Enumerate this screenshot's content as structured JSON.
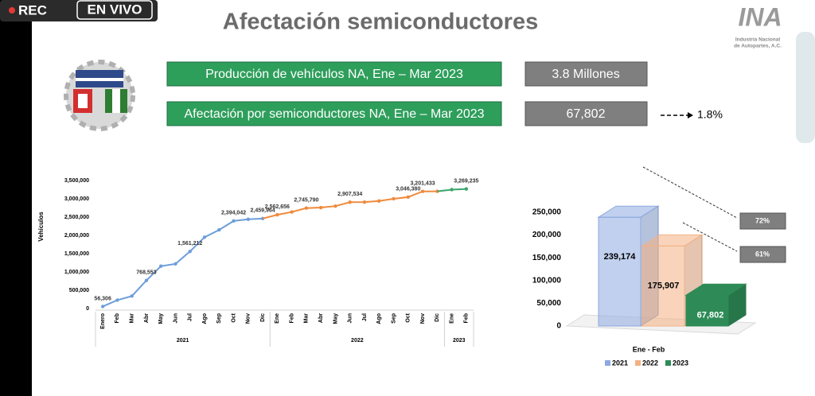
{
  "overlay": {
    "rec": "REC",
    "live": "EN VIVO"
  },
  "slide": {
    "title": "Afectación semiconductores",
    "logo": {
      "mark": "INA",
      "text": [
        "Industria Nacional",
        "de Autopartes, A.C."
      ]
    },
    "rows": [
      {
        "label": "Producción de vehículos NA, Ene – Mar 2023",
        "value": "3.8 Millones"
      },
      {
        "label": "Afectación por semiconductores NA, Ene – Mar 2023",
        "value": "67,802",
        "note": "1.8%"
      }
    ]
  },
  "chart_data": [
    {
      "type": "line",
      "y_label": "Vehículos",
      "ylim": [
        0,
        3500000
      ],
      "yticks": [
        0,
        {
          "value": 500000,
          "label": "500,000"
        },
        {
          "value": 1000000,
          "label": "1,000,000"
        },
        {
          "value": 1500000,
          "label": "1,500,000"
        },
        {
          "value": 2000000,
          "label": "2,000,000"
        },
        {
          "value": 2500000,
          "label": "2,500,000"
        },
        {
          "value": 3000000,
          "label": "3,000,000"
        },
        {
          "value": 3500000,
          "label": "3,500,000"
        }
      ],
      "series": [
        {
          "name": "2021",
          "color": "#6d9ed9",
          "categories": [
            "Enero",
            "Feb",
            "Mar",
            "Abr",
            "May",
            "Jun",
            "Jul",
            "Ago",
            "Sep",
            "Oct",
            "Nov",
            "Dic"
          ],
          "values": [
            56306,
            230000,
            340000,
            768553,
            1160000,
            1220000,
            1561212,
            1950000,
            2150000,
            2394042,
            2440000,
            2459964
          ],
          "value_labels": [
            "56,306",
            null,
            null,
            "768,553",
            null,
            null,
            "1,561,212",
            null,
            null,
            "2,394,042",
            null,
            "2,459,964"
          ]
        },
        {
          "name": "2022",
          "color": "#f08a3c",
          "categories": [
            "Ene",
            "Feb",
            "Mar",
            "Abr",
            "May",
            "Jun",
            "Jul",
            "Ago",
            "Sep",
            "Oct",
            "Nov",
            "Dic"
          ],
          "values": [
            2562656,
            2640000,
            2745790,
            2760000,
            2800000,
            2907534,
            2910000,
            2940000,
            3000000,
            3046380,
            3201433,
            3205000
          ],
          "value_labels": [
            "2,562,656",
            null,
            "2,745,790",
            null,
            null,
            "2,907,534",
            null,
            null,
            null,
            "3,046,380",
            "3,201,433",
            null
          ]
        },
        {
          "name": "2023",
          "color": "#3aa56b",
          "categories": [
            "Ene",
            "Feb"
          ],
          "values": [
            3250000,
            3269235
          ],
          "value_labels": [
            null,
            "3,269,235"
          ]
        }
      ]
    },
    {
      "type": "bar3d",
      "categories": [
        "Ene - Feb"
      ],
      "ylim": [
        0,
        250000
      ],
      "yticks": [
        0,
        {
          "value": 50000,
          "label": "50,000"
        },
        {
          "value": 100000,
          "label": "100,000"
        },
        {
          "value": 150000,
          "label": "150,000"
        },
        {
          "value": 200000,
          "label": "200,000"
        },
        {
          "value": 250000,
          "label": "250,000"
        }
      ],
      "series": [
        {
          "name": "2021",
          "color": "#8ea9e0",
          "values": [
            239174
          ],
          "value_labels": [
            "239,174"
          ]
        },
        {
          "name": "2022",
          "color": "#f4b183",
          "values": [
            175907
          ],
          "value_labels": [
            "175,907"
          ]
        },
        {
          "name": "2023",
          "color": "#2e8b57",
          "values": [
            67802
          ],
          "value_labels": [
            "67,802"
          ]
        }
      ],
      "legend": "bottom",
      "annotations": [
        "72%",
        "61%"
      ]
    }
  ]
}
